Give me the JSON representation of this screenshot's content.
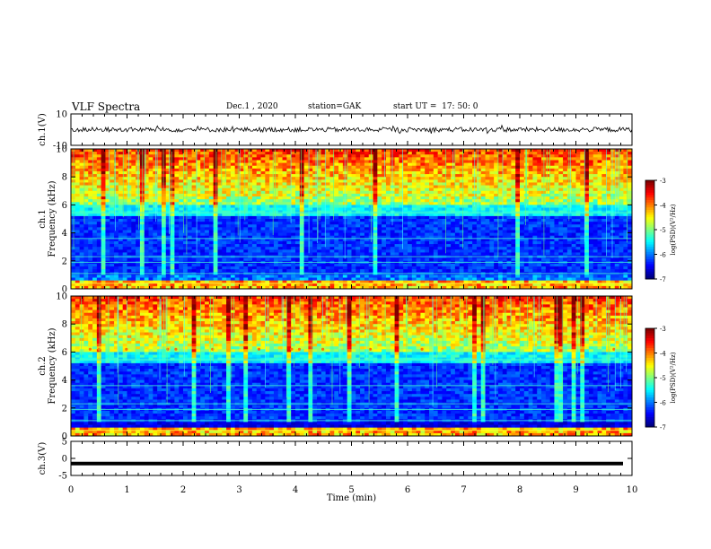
{
  "header": {
    "title": "VLF Spectra",
    "date": "Dec.1 , 2020",
    "station": "station=GAK",
    "start": "start UT =  17: 50: 0"
  },
  "chart_data": [
    {
      "type": "line",
      "panel": "waveform-ch1",
      "ylabel": "ch.1(V)",
      "ylim": [
        -10,
        10
      ],
      "yticks": [
        "10",
        "-10"
      ],
      "baseline": 0,
      "xlim": [
        0,
        10
      ]
    },
    {
      "type": "heatmap",
      "panel": "spectrogram-ch1",
      "ylabel": "ch.1\nFrequency (kHz)",
      "ylim": [
        0,
        10
      ],
      "yticks": [
        "0",
        "2",
        "4",
        "6",
        "8",
        "10"
      ],
      "xlim": [
        0,
        10
      ],
      "colorbar": {
        "label": "log(PSD)(V²/Hz)",
        "range": [
          -7,
          -3
        ],
        "ticks": [
          "-3",
          "-4",
          "-5",
          "-6",
          "-7"
        ]
      }
    },
    {
      "type": "heatmap",
      "panel": "spectrogram-ch2",
      "ylabel": "ch.2\nFrequency (kHz)",
      "ylim": [
        0,
        10
      ],
      "yticks": [
        "0",
        "2",
        "4",
        "6",
        "8",
        "10"
      ],
      "xlim": [
        0,
        10
      ],
      "colorbar": {
        "label": "log(PSD)(V²/Hz)",
        "range": [
          -7,
          -3
        ],
        "ticks": [
          "-3",
          "-4",
          "-5",
          "-6",
          "-7"
        ]
      }
    },
    {
      "type": "line",
      "panel": "waveform-ch3",
      "ylabel": "ch.3(V)",
      "ylim": [
        -5,
        5
      ],
      "yticks": [
        "5",
        "0",
        "-5"
      ],
      "baseline": -1.5,
      "xlim": [
        0,
        10
      ]
    }
  ],
  "xaxis": {
    "label": "Time  (min)",
    "ticks": [
      "0",
      "1",
      "2",
      "3",
      "4",
      "5",
      "6",
      "7",
      "8",
      "9",
      "10"
    ]
  },
  "colors": {
    "low": "#00007f",
    "mid": "#00c8c8",
    "high": "#ff0000",
    "line": "#000000"
  }
}
